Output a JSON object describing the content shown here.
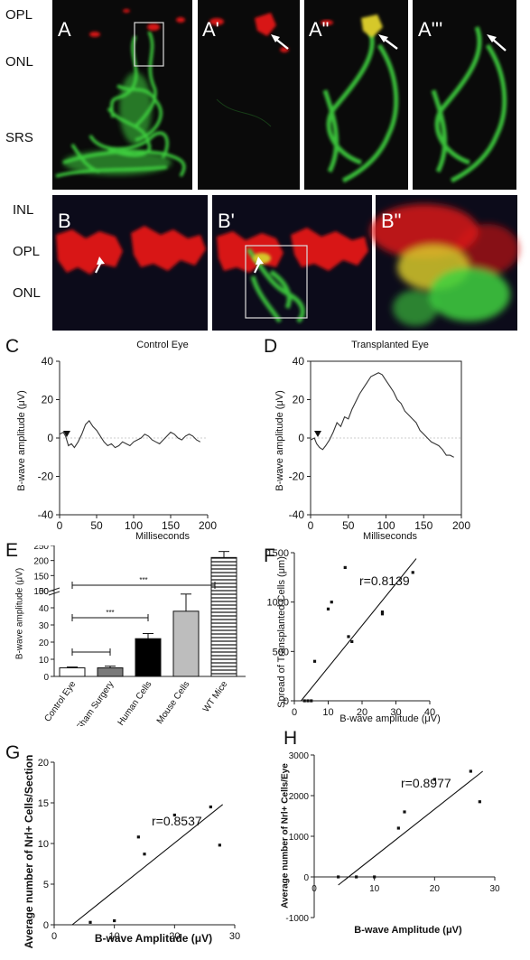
{
  "panel_a": {
    "letter": "A",
    "layers": [
      "OPL",
      "ONL",
      "SRS"
    ],
    "insets": [
      "A'",
      "A\"",
      "A'''"
    ]
  },
  "panel_b": {
    "letter": "B",
    "layers": [
      "INL",
      "OPL",
      "ONL"
    ],
    "insets": [
      "B'",
      "B\""
    ]
  },
  "colors": {
    "red_channel": "#d81414",
    "green_channel": "#3fd23f",
    "background": "#0a0a0a",
    "merge": "#d6c82a"
  },
  "chart_data": [
    {
      "id": "C",
      "type": "line",
      "title": "Control Eye",
      "xlabel": "Milliseconds",
      "ylabel": "B-wave amplitude (μV)",
      "xlim": [
        0,
        200
      ],
      "ylim": [
        -40,
        40
      ],
      "xticks": [
        "0",
        "50",
        "100",
        "150",
        "200"
      ],
      "yticks": [
        "40",
        "20",
        "0",
        "-20",
        "-40"
      ],
      "x": [
        0,
        5,
        8,
        12,
        16,
        20,
        25,
        30,
        35,
        40,
        45,
        50,
        55,
        60,
        65,
        70,
        75,
        80,
        85,
        90,
        95,
        100,
        105,
        110,
        115,
        120,
        125,
        130,
        135,
        140,
        145,
        150,
        155,
        160,
        165,
        170,
        175,
        180,
        185,
        190
      ],
      "y": [
        2,
        3,
        1,
        -4,
        -3,
        -5,
        -2,
        2,
        7,
        9,
        6,
        4,
        1,
        -2,
        -4,
        -3,
        -5,
        -4,
        -2,
        -3,
        -4,
        -2,
        -1,
        0,
        2,
        1,
        -1,
        -2,
        -3,
        -1,
        1,
        3,
        2,
        0,
        -1,
        1,
        2,
        1,
        -1,
        -2
      ]
    },
    {
      "id": "D",
      "type": "line",
      "title": "Transplanted Eye",
      "xlabel": "Milliseconds",
      "ylabel": "B-wave amplitude (μV)",
      "xlim": [
        0,
        200
      ],
      "ylim": [
        -40,
        40
      ],
      "xticks": [
        "0",
        "50",
        "100",
        "150",
        "200"
      ],
      "yticks": [
        "40",
        "20",
        "0",
        "-20",
        "-40"
      ],
      "x": [
        0,
        5,
        8,
        12,
        16,
        20,
        25,
        30,
        35,
        40,
        45,
        50,
        55,
        60,
        65,
        70,
        75,
        80,
        85,
        90,
        95,
        100,
        105,
        110,
        115,
        120,
        125,
        130,
        135,
        140,
        145,
        150,
        155,
        160,
        165,
        170,
        175,
        180,
        185,
        190
      ],
      "y": [
        -1,
        0,
        -3,
        -5,
        -6,
        -4,
        -1,
        3,
        8,
        6,
        11,
        10,
        15,
        19,
        23,
        26,
        29,
        32,
        33,
        34,
        33,
        30,
        27,
        24,
        20,
        18,
        14,
        12,
        10,
        8,
        4,
        2,
        0,
        -2,
        -3,
        -4,
        -6,
        -9,
        -9,
        -10
      ]
    },
    {
      "id": "E",
      "type": "bar",
      "ylabel": "B-wave amplitude (μV)",
      "categories": [
        "Control Eye",
        "Sham Surgery",
        "Human Cells",
        "Mouse Cells",
        "WT Mice"
      ],
      "values": [
        5,
        5,
        22,
        38,
        210
      ],
      "errors": [
        0.5,
        1,
        3,
        10,
        20
      ],
      "yticks_lower": [
        "0",
        "10",
        "20",
        "30",
        "40",
        "50"
      ],
      "yticks_upper": [
        "100",
        "150",
        "200",
        "250"
      ],
      "fills": [
        "#ffffff",
        "#7a7a7a",
        "#000000",
        "#bdbdbd",
        "hatched"
      ],
      "significance": [
        "***",
        "***"
      ]
    },
    {
      "id": "F",
      "type": "scatter",
      "xlabel": "B-wave amplitude (μV)",
      "ylabel": "Spread of Transplanted Cells (μm)",
      "xlim": [
        0,
        40
      ],
      "ylim": [
        0,
        1500
      ],
      "xticks": [
        "0",
        "10",
        "20",
        "30",
        "40"
      ],
      "yticks": [
        "0",
        "500",
        "1000",
        "1500"
      ],
      "annotation": "r=0.8139",
      "x": [
        3,
        4,
        5,
        6,
        10,
        11,
        15,
        16,
        17,
        26,
        26,
        35
      ],
      "y": [
        0,
        0,
        0,
        400,
        930,
        1000,
        1350,
        650,
        600,
        880,
        900,
        1300
      ],
      "fit": [
        [
          2,
          0
        ],
        [
          36,
          1440
        ]
      ]
    },
    {
      "id": "G",
      "type": "scatter",
      "xlabel": "B-wave Amplitude (μV)",
      "ylabel": "Average number of Nrl+ Cells/Section",
      "xlim": [
        0,
        30
      ],
      "ylim": [
        0,
        20
      ],
      "xticks": [
        "0",
        "10",
        "20",
        "30"
      ],
      "yticks": [
        "0",
        "5",
        "10",
        "15",
        "20"
      ],
      "annotation": "r=0.8537",
      "x": [
        6,
        10,
        14,
        15,
        20,
        26,
        27.5
      ],
      "y": [
        0.3,
        0.5,
        10.8,
        8.7,
        13.5,
        14.5,
        9.8
      ],
      "fit": [
        [
          3,
          0
        ],
        [
          28,
          14.8
        ]
      ]
    },
    {
      "id": "H",
      "type": "scatter",
      "xlabel": "B-wave Amplitude (μV)",
      "ylabel": "Average number of Nrl+ Cells/Eye",
      "xlim": [
        0,
        30
      ],
      "ylim": [
        -1000,
        3000
      ],
      "xticks": [
        "0",
        "10",
        "20",
        "30"
      ],
      "yticks": [
        "3000",
        "2000",
        "1000",
        "0",
        "-1000"
      ],
      "annotation": "r=0.8977",
      "x": [
        4,
        7,
        10,
        14,
        15,
        20,
        26,
        27.5
      ],
      "y": [
        0,
        0,
        0,
        1200,
        1600,
        2400,
        2600,
        1850
      ],
      "fit": [
        [
          4,
          -200
        ],
        [
          28,
          2600
        ]
      ]
    }
  ]
}
